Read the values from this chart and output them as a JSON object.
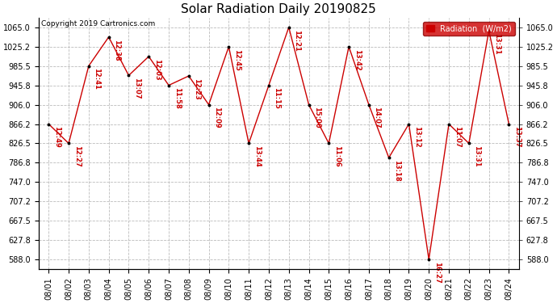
{
  "title": "Solar Radiation Daily 20190825",
  "copyright": "Copyright 2019 Cartronics.com",
  "ylabel": "Radiation  (W/m2)",
  "ylim": [
    568.0,
    1085.0
  ],
  "yticks": [
    588.0,
    627.8,
    667.5,
    707.2,
    747.0,
    786.8,
    826.5,
    866.2,
    906.0,
    945.8,
    985.5,
    1025.2,
    1065.0
  ],
  "line_color": "#cc0000",
  "marker_color": "#000000",
  "background_color": "#ffffff",
  "grid_color": "#bbbbbb",
  "dates": [
    "08/01",
    "08/02",
    "08/03",
    "08/04",
    "08/05",
    "08/06",
    "08/07",
    "08/08",
    "08/09",
    "08/10",
    "08/11",
    "08/12",
    "08/13",
    "08/14",
    "08/15",
    "08/16",
    "08/17",
    "08/18",
    "08/19",
    "08/20",
    "08/21",
    "08/22",
    "08/23",
    "08/24"
  ],
  "values": [
    866.2,
    826.5,
    985.5,
    1045.0,
    966.0,
    1005.0,
    945.8,
    965.0,
    906.0,
    1025.2,
    826.5,
    945.8,
    1065.0,
    906.0,
    826.5,
    1025.2,
    906.0,
    797.0,
    866.2,
    588.0,
    866.2,
    826.5,
    1058.0,
    866.2
  ],
  "time_labels": [
    "12:49",
    "12:27",
    "12:41",
    "12:38",
    "13:07",
    "12:03",
    "11:58",
    "12:23",
    "12:09",
    "12:45",
    "13:44",
    "11:15",
    "12:21",
    "15:00",
    "11:06",
    "13:42",
    "14:07",
    "13:18",
    "13:12",
    "16:27",
    "11:07",
    "13:31",
    "13:31",
    "13:37"
  ],
  "title_fontsize": 11,
  "tick_fontsize": 7,
  "annot_fontsize": 6
}
